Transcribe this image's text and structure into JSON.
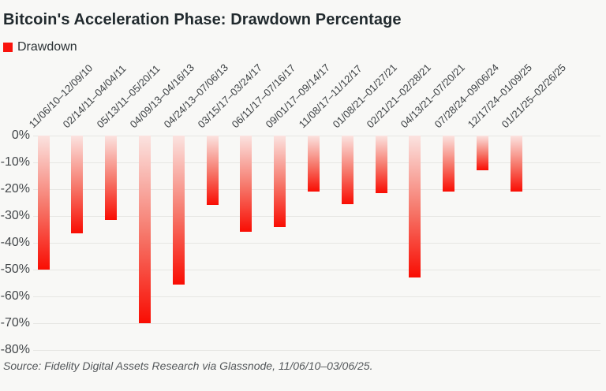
{
  "title": "Bitcoin's Acceleration Phase: Drawdown Percentage",
  "legend": {
    "label": "Drawdown",
    "color": "#f9130c"
  },
  "source": "Source: Fidelity Digital Assets Research via Glassnode, 11/06/10–03/06/25.",
  "chart_data": {
    "type": "bar",
    "title": "Bitcoin's Acceleration Phase: Drawdown Percentage",
    "categories": [
      "11/06/10–12/09/10",
      "02/14/11–04/04/11",
      "05/13/11–05/20/11",
      "04/09/13–04/16/13",
      "04/24/13–07/06/13",
      "03/15/17–03/24/17",
      "06/11/17–07/16/17",
      "09/01/17–09/14/17",
      "11/08/17–11/12/17",
      "01/08/21–01/27/21",
      "02/21/21–02/28/21",
      "04/13/21–07/20/21",
      "07/28/24–09/06/24",
      "12/17/24–01/09/25",
      "01/21/25–02/26/25"
    ],
    "series": [
      {
        "name": "Drawdown",
        "values": [
          -50,
          -36.5,
          -31.5,
          -70,
          -55.5,
          -26,
          -36,
          -34,
          -21,
          -25.5,
          -21.5,
          -53,
          -21,
          -13,
          -21
        ]
      }
    ],
    "unit": "%",
    "xlabel": "",
    "ylabel": "",
    "ylim": [
      -80,
      0
    ],
    "yticks": [
      "0%",
      "-10%",
      "-20%",
      "-30%",
      "-40%",
      "-50%",
      "-60%",
      "-70%",
      "-80%"
    ],
    "grid": true,
    "legend_position": "top-left",
    "bar_color_gradient": [
      "#fbe3e0",
      "#f90d03"
    ]
  }
}
